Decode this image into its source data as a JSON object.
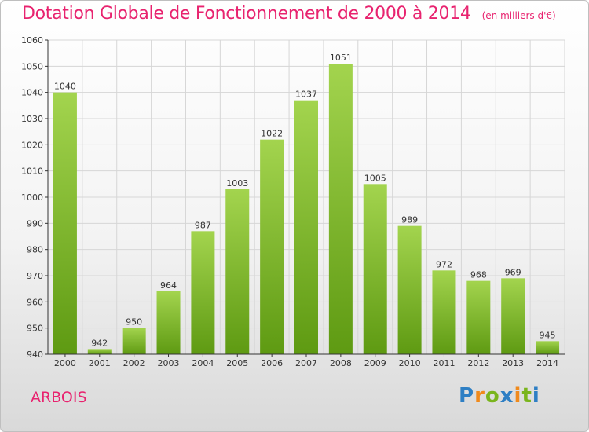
{
  "title": "Dotation Globale de Fonctionnement de 2000 à 2014",
  "subtitle": "(en milliers d'€)",
  "town": "ARBOIS",
  "logo": {
    "letters": [
      "P",
      "r",
      "o",
      "x",
      "i",
      "t",
      "i"
    ],
    "colors": [
      "#2e7fc4",
      "#f08a1c",
      "#7ab51d",
      "#2e7fc4",
      "#f08a1c",
      "#7ab51d",
      "#2e7fc4"
    ]
  },
  "colors": {
    "bar_top": "#a3d44e",
    "bar_bottom": "#5e9a12",
    "axis": "#333333",
    "grid": "#d6d6d6",
    "title": "#e8236f"
  },
  "chart_data": {
    "type": "bar",
    "categories": [
      "2000",
      "2001",
      "2002",
      "2003",
      "2004",
      "2005",
      "2006",
      "2007",
      "2008",
      "2009",
      "2010",
      "2011",
      "2012",
      "2013",
      "2014"
    ],
    "values": [
      1040,
      942,
      950,
      964,
      987,
      1003,
      1022,
      1037,
      1051,
      1005,
      989,
      972,
      968,
      969,
      945
    ],
    "ylim": [
      940,
      1060
    ],
    "yticks": [
      940,
      950,
      960,
      970,
      980,
      990,
      1000,
      1010,
      1020,
      1030,
      1040,
      1050,
      1060
    ],
    "grid": true,
    "data_labels": true
  }
}
